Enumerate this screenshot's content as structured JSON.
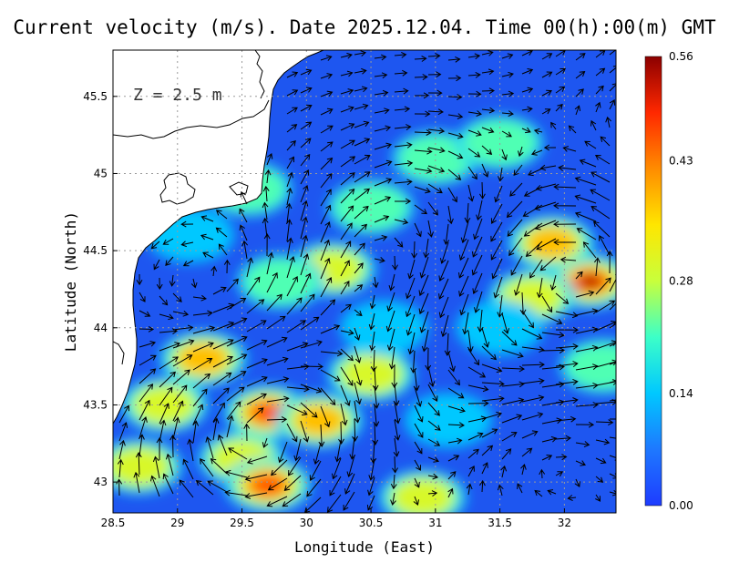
{
  "title": "Current velocity (m/s). Date 2025.12.04. Time 00(h):00(m) GMT",
  "depth_label": "Z = 2.5 m",
  "colors": {
    "ocean_base": "#1e56f0",
    "land": "#ffffff",
    "coast": "#000000",
    "arrow": "#000000",
    "grid": "#9a9a9a"
  },
  "chart_data": {
    "type": "heatmap",
    "xlabel": "Longitude (East)",
    "ylabel": "Latitude (North)",
    "xlim": [
      28.5,
      32.4
    ],
    "ylim": [
      42.8,
      45.8
    ],
    "x_ticks": [
      "28.5",
      "29",
      "29.5",
      "30",
      "30.5",
      "31",
      "31.5",
      "32"
    ],
    "y_ticks": [
      "43",
      "43.5",
      "44",
      "44.5",
      "45",
      "45.5"
    ],
    "grid": true,
    "colorbar": {
      "range": [
        0.0,
        0.56
      ],
      "labels": [
        "0.00",
        "0.14",
        "0.28",
        "0.43",
        "0.56"
      ],
      "label_values": [
        0.0,
        0.14,
        0.28,
        0.43,
        0.56
      ],
      "stops": [
        "#1e3cff",
        "#1e78ff",
        "#00c8ff",
        "#3cffc8",
        "#c8ff3c",
        "#ffe600",
        "#ff8c00",
        "#ff2800",
        "#8c0000"
      ]
    },
    "speed_features": [
      {
        "lon": 29.7,
        "lat": 43.45,
        "speed": 0.5
      },
      {
        "lon": 30.1,
        "lat": 43.4,
        "speed": 0.44
      },
      {
        "lon": 29.5,
        "lat": 43.15,
        "speed": 0.36
      },
      {
        "lon": 29.7,
        "lat": 42.98,
        "speed": 0.45
      },
      {
        "lon": 29.2,
        "lat": 43.8,
        "speed": 0.4
      },
      {
        "lon": 28.9,
        "lat": 43.5,
        "speed": 0.3
      },
      {
        "lon": 28.7,
        "lat": 43.1,
        "speed": 0.3
      },
      {
        "lon": 30.5,
        "lat": 43.7,
        "speed": 0.3
      },
      {
        "lon": 30.9,
        "lat": 42.9,
        "speed": 0.36
      },
      {
        "lon": 32.2,
        "lat": 44.3,
        "speed": 0.56
      },
      {
        "lon": 31.9,
        "lat": 44.55,
        "speed": 0.38
      },
      {
        "lon": 31.75,
        "lat": 44.2,
        "speed": 0.3
      },
      {
        "lon": 32.3,
        "lat": 43.75,
        "speed": 0.25
      },
      {
        "lon": 30.2,
        "lat": 44.38,
        "speed": 0.3
      },
      {
        "lon": 29.8,
        "lat": 44.3,
        "speed": 0.28
      },
      {
        "lon": 31.0,
        "lat": 45.1,
        "speed": 0.26
      },
      {
        "lon": 31.5,
        "lat": 45.2,
        "speed": 0.26
      },
      {
        "lon": 30.5,
        "lat": 44.78,
        "speed": 0.22
      },
      {
        "lon": 29.55,
        "lat": 44.9,
        "speed": 0.26
      },
      {
        "lon": 31.5,
        "lat": 44.0,
        "speed": 0.2
      },
      {
        "lon": 30.6,
        "lat": 44.0,
        "speed": 0.2
      },
      {
        "lon": 31.1,
        "lat": 43.4,
        "speed": 0.18
      },
      {
        "lon": 29.1,
        "lat": 44.6,
        "speed": 0.18
      }
    ]
  }
}
